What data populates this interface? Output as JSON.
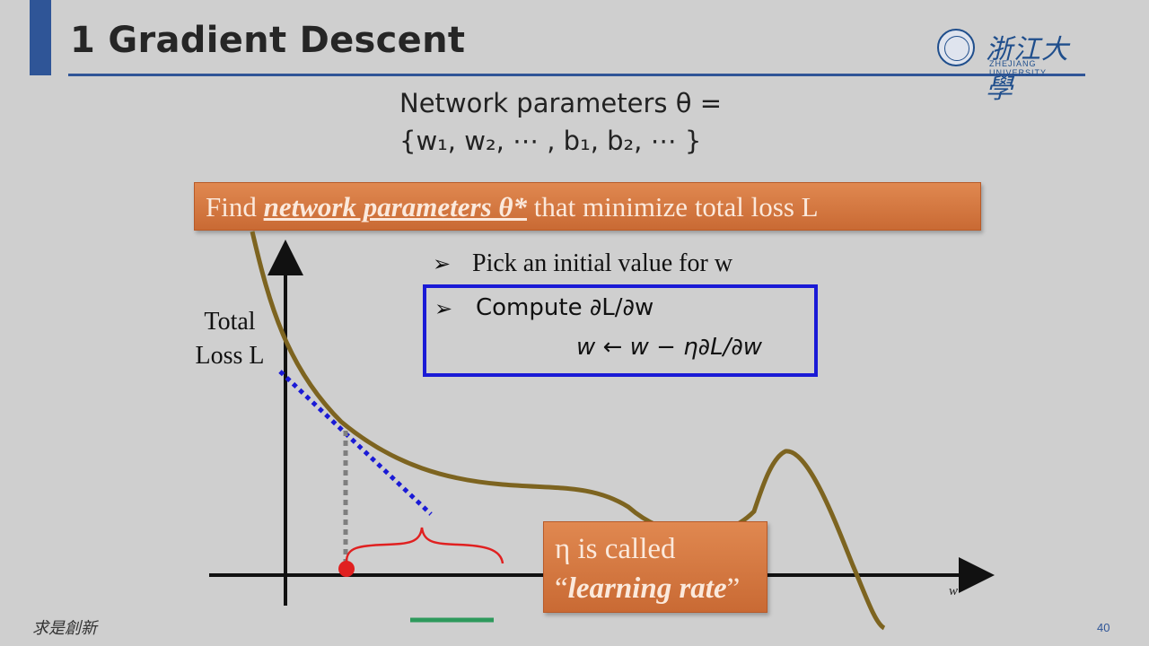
{
  "title": "1 Gradient Descent",
  "logo": {
    "name_cn": "浙江大學",
    "name_en": "ZHEJIANG UNIVERSITY"
  },
  "params": {
    "line1": "Network parameters θ =",
    "line2": "{w₁, w₂, ⋯ , b₁, b₂, ⋯ }"
  },
  "banner": {
    "prefix": "Find ",
    "emphasis": "network parameters θ*",
    "suffix": " that minimize total loss L"
  },
  "steps": {
    "step1": "Pick an initial value for w",
    "step2": "Compute ∂L/∂w",
    "update_rule": "w ← w − η∂L/∂w",
    "bullet": "➢"
  },
  "axes": {
    "y_label_line1": "Total",
    "y_label_line2": "Loss L",
    "x_label": "w"
  },
  "eta_note": {
    "line1": "η is called",
    "quote_open": "“",
    "emphasis": "learning rate",
    "quote_close": "”"
  },
  "footer": {
    "motto": "求是創新",
    "page_number": "40"
  },
  "colors": {
    "accent": "#2f5597",
    "orange": "#d27a40",
    "curve": "#7d6420",
    "tangent": "#1a1ad6",
    "point": "#e02020",
    "step_bar": "#2e9a5c"
  }
}
